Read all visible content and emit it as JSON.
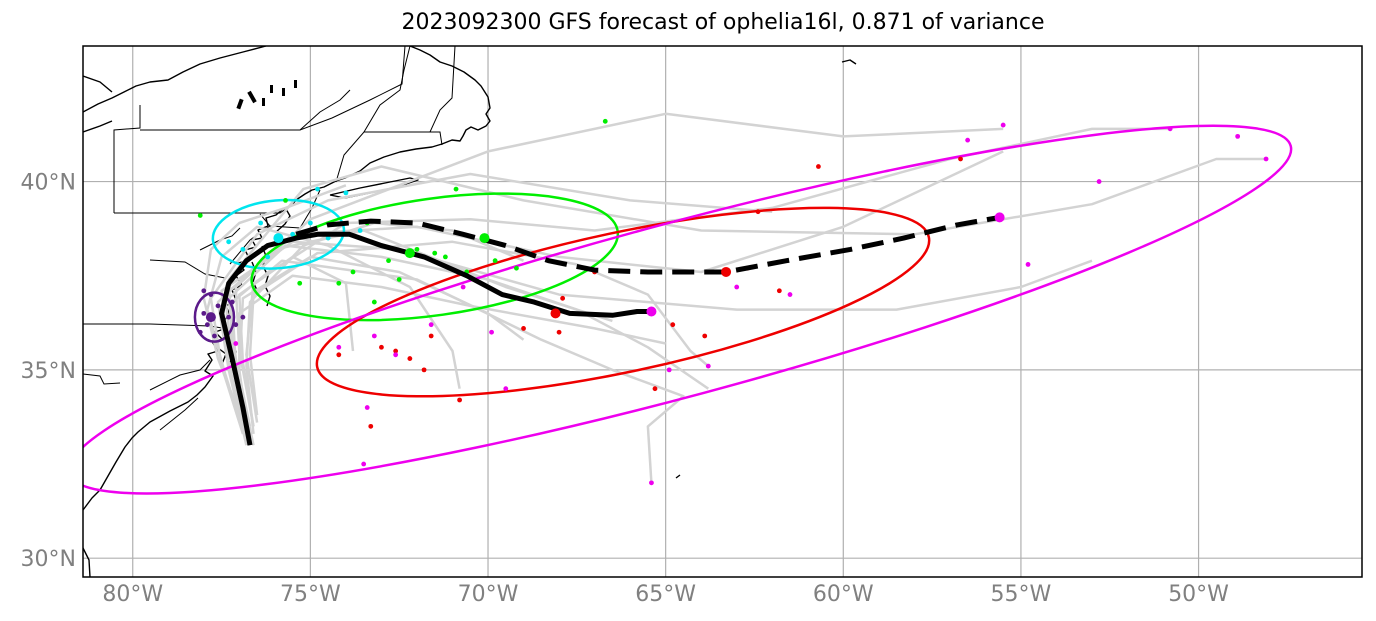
{
  "title": "2023092300 GFS forecast of ophelia16l, 0.871 of variance",
  "map": {
    "lon_range": [
      -81.4,
      -45.4
    ],
    "lat_range": [
      29.5,
      43.6
    ],
    "grid": true,
    "lon_ticks": [
      {
        "value": -80,
        "label": "80°W"
      },
      {
        "value": -75,
        "label": "75°W"
      },
      {
        "value": -70,
        "label": "70°W"
      },
      {
        "value": -65,
        "label": "65°W"
      },
      {
        "value": -60,
        "label": "60°W"
      },
      {
        "value": -55,
        "label": "55°W"
      },
      {
        "value": -50,
        "label": "50°W"
      }
    ],
    "lat_ticks": [
      {
        "value": 40,
        "label": "40°N"
      },
      {
        "value": 35,
        "label": "35°N"
      },
      {
        "value": 30,
        "label": "30°N"
      }
    ]
  },
  "colors": {
    "grid": "#b0b0b0",
    "tick_text": "#808080",
    "coast": "#000000",
    "member_track": "#d3d3d3",
    "mean_track": "#000000",
    "purple": "#5b1a8a",
    "cyan": "#00e5ee",
    "green": "#00ee00",
    "red": "#ee0000",
    "magenta": "#ee00ee"
  },
  "mean_track_solid": [
    [
      -76.7,
      33.0
    ],
    [
      -76.9,
      34.0
    ],
    [
      -77.2,
      35.3
    ],
    [
      -77.5,
      36.5
    ],
    [
      -77.3,
      37.3
    ],
    [
      -76.8,
      37.9
    ],
    [
      -76.2,
      38.3
    ],
    [
      -75.4,
      38.5
    ],
    [
      -74.8,
      38.6
    ],
    [
      -73.9,
      38.6
    ],
    [
      -73.0,
      38.3
    ],
    [
      -71.8,
      38.0
    ],
    [
      -70.6,
      37.5
    ],
    [
      -69.6,
      37.0
    ],
    [
      -68.7,
      36.8
    ],
    [
      -67.7,
      36.5
    ],
    [
      -66.5,
      36.45
    ],
    [
      -65.8,
      36.55
    ],
    [
      -65.4,
      36.55
    ]
  ],
  "mean_track_dashed": [
    [
      -75.4,
      38.6
    ],
    [
      -74.5,
      38.85
    ],
    [
      -73.3,
      38.95
    ],
    [
      -72.0,
      38.9
    ],
    [
      -70.7,
      38.6
    ],
    [
      -69.5,
      38.3
    ],
    [
      -68.3,
      37.9
    ],
    [
      -67.0,
      37.65
    ],
    [
      -65.5,
      37.6
    ],
    [
      -64.2,
      37.6
    ],
    [
      -63.3,
      37.6
    ],
    [
      -61.6,
      37.9
    ],
    [
      -59.8,
      38.2
    ],
    [
      -58.3,
      38.5
    ],
    [
      -56.8,
      38.85
    ],
    [
      -55.6,
      39.05
    ]
  ],
  "mean_points": [
    {
      "lon": -77.8,
      "lat": 36.4,
      "color": "purple"
    },
    {
      "lon": -75.9,
      "lat": 38.5,
      "color": "cyan"
    },
    {
      "lon": -72.2,
      "lat": 38.1,
      "color": "green"
    },
    {
      "lon": -70.1,
      "lat": 38.5,
      "color": "green"
    },
    {
      "lon": -68.1,
      "lat": 36.5,
      "color": "red"
    },
    {
      "lon": -63.3,
      "lat": 37.6,
      "color": "red"
    },
    {
      "lon": -65.4,
      "lat": 36.55,
      "color": "magenta"
    },
    {
      "lon": -55.6,
      "lat": 39.05,
      "color": "magenta"
    }
  ],
  "ellipses": [
    {
      "cx": -77.7,
      "cy": 36.4,
      "rx": 0.55,
      "ry": 0.65,
      "angle": 0,
      "color": "purple"
    },
    {
      "cx": -75.9,
      "cy": 38.6,
      "rx": 1.85,
      "ry": 0.9,
      "angle": -5,
      "color": "cyan"
    },
    {
      "cx": -71.5,
      "cy": 38.0,
      "rx": 5.2,
      "ry": 1.55,
      "angle": -8,
      "color": "green"
    },
    {
      "cx": -66.2,
      "cy": 36.8,
      "rx": 8.8,
      "ry": 1.85,
      "angle": -12,
      "color": "red"
    },
    {
      "cx": -64.6,
      "cy": 36.6,
      "rx": 17.8,
      "ry": 2.3,
      "angle": -15,
      "color": "magenta"
    }
  ],
  "member_tracks": [
    [
      [
        -76.8,
        33.0
      ],
      [
        -77.3,
        35.0
      ],
      [
        -77.6,
        36.8
      ],
      [
        -76.0,
        38.2
      ],
      [
        -73.5,
        38.7
      ],
      [
        -69.5,
        37.2
      ],
      [
        -66.5,
        36.3
      ]
    ],
    [
      [
        -76.7,
        33.2
      ],
      [
        -77.2,
        35.2
      ],
      [
        -77.4,
        37.0
      ],
      [
        -75.5,
        38.6
      ],
      [
        -72.0,
        38.8
      ],
      [
        -68.0,
        38.0
      ],
      [
        -64.0,
        37.6
      ],
      [
        -60.0,
        38.8
      ],
      [
        -55.5,
        40.8
      ]
    ],
    [
      [
        -76.6,
        33.5
      ],
      [
        -77.0,
        35.5
      ],
      [
        -77.1,
        37.2
      ],
      [
        -75.0,
        39.0
      ],
      [
        -70.0,
        40.8
      ],
      [
        -65.0,
        41.8
      ],
      [
        -60.0,
        41.2
      ],
      [
        -55.5,
        41.4
      ]
    ],
    [
      [
        -76.9,
        33.3
      ],
      [
        -77.5,
        35.1
      ],
      [
        -77.8,
        36.9
      ],
      [
        -76.5,
        38.6
      ],
      [
        -74.5,
        39.5
      ],
      [
        -70.5,
        40.2
      ],
      [
        -66.0,
        39.5
      ],
      [
        -62.0,
        39.2
      ]
    ],
    [
      [
        -76.5,
        33.6
      ],
      [
        -76.8,
        35.4
      ],
      [
        -76.6,
        37.3
      ],
      [
        -74.0,
        38.9
      ],
      [
        -70.5,
        39.0
      ],
      [
        -67.0,
        38.7
      ],
      [
        -62.0,
        39.3
      ],
      [
        -57.0,
        40.6
      ],
      [
        -53.0,
        41.4
      ],
      [
        -50.8,
        41.4
      ]
    ],
    [
      [
        -76.8,
        33.4
      ],
      [
        -77.2,
        35.6
      ],
      [
        -77.3,
        37.4
      ],
      [
        -75.2,
        39.8
      ],
      [
        -73.0,
        40.4
      ],
      [
        -69.0,
        39.5
      ],
      [
        -64.0,
        38.7
      ],
      [
        -58.0,
        38.6
      ],
      [
        -53.0,
        39.4
      ],
      [
        -49.5,
        40.6
      ],
      [
        -48.1,
        40.6
      ]
    ],
    [
      [
        -76.7,
        33.0
      ],
      [
        -77.0,
        35.0
      ],
      [
        -76.9,
        36.9
      ],
      [
        -75.0,
        38.0
      ],
      [
        -72.5,
        37.6
      ],
      [
        -70.0,
        36.5
      ],
      [
        -69.0,
        35.8
      ]
    ],
    [
      [
        -76.8,
        33.1
      ],
      [
        -77.4,
        34.9
      ],
      [
        -77.9,
        36.6
      ],
      [
        -77.5,
        38.0
      ],
      [
        -76.5,
        38.8
      ],
      [
        -74.5,
        38.3
      ],
      [
        -72.2,
        37.2
      ],
      [
        -71.0,
        35.5
      ],
      [
        -70.8,
        34.5
      ]
    ],
    [
      [
        -76.6,
        33.5
      ],
      [
        -76.9,
        35.2
      ],
      [
        -77.0,
        37.0
      ],
      [
        -75.5,
        38.0
      ],
      [
        -74.0,
        37.3
      ],
      [
        -73.8,
        35.5
      ]
    ],
    [
      [
        -76.7,
        33.3
      ],
      [
        -77.1,
        35.1
      ],
      [
        -77.2,
        36.8
      ],
      [
        -75.8,
        37.9
      ],
      [
        -72.0,
        37.4
      ],
      [
        -68.5,
        35.8
      ],
      [
        -66.5,
        35.0
      ],
      [
        -64.5,
        34.3
      ],
      [
        -65.5,
        33.5
      ],
      [
        -65.4,
        32.0
      ]
    ],
    [
      [
        -76.5,
        33.8
      ],
      [
        -76.7,
        35.4
      ],
      [
        -76.6,
        37.0
      ],
      [
        -74.8,
        38.1
      ],
      [
        -71.0,
        38.4
      ],
      [
        -67.5,
        37.8
      ],
      [
        -65.5,
        37.0
      ],
      [
        -64.3,
        35.5
      ],
      [
        -63.8,
        35.1
      ]
    ],
    [
      [
        -76.9,
        33.6
      ],
      [
        -77.6,
        35.3
      ],
      [
        -78.0,
        36.9
      ],
      [
        -77.8,
        38.2
      ],
      [
        -77.0,
        38.9
      ],
      [
        -75.7,
        39.3
      ],
      [
        -74.0,
        39.9
      ]
    ],
    [
      [
        -76.6,
        33.0
      ],
      [
        -77.0,
        34.8
      ],
      [
        -77.0,
        36.5
      ],
      [
        -75.5,
        37.5
      ],
      [
        -73.0,
        37.2
      ],
      [
        -70.5,
        36.7
      ],
      [
        -67.0,
        36.1
      ],
      [
        -65.0,
        35.7
      ]
    ],
    [
      [
        -76.8,
        33.2
      ],
      [
        -77.3,
        35.2
      ],
      [
        -77.5,
        37.1
      ],
      [
        -75.5,
        38.4
      ],
      [
        -72.5,
        38.2
      ],
      [
        -68.0,
        37.0
      ],
      [
        -63.0,
        36.6
      ],
      [
        -58.5,
        36.6
      ],
      [
        -55.0,
        37.2
      ],
      [
        -53.0,
        37.9
      ]
    ],
    [
      [
        -76.7,
        33.5
      ],
      [
        -77.1,
        35.3
      ],
      [
        -77.3,
        36.9
      ],
      [
        -75.7,
        38.3
      ],
      [
        -73.0,
        38.0
      ],
      [
        -70.0,
        37.4
      ],
      [
        -67.5,
        36.6
      ],
      [
        -65.5,
        35.6
      ],
      [
        -63.8,
        34.5
      ]
    ],
    [
      [
        -76.6,
        33.3
      ],
      [
        -76.8,
        35.1
      ],
      [
        -76.7,
        36.8
      ],
      [
        -75.2,
        38.3
      ],
      [
        -73.2,
        38.9
      ],
      [
        -71.0,
        38.7
      ],
      [
        -69.0,
        37.9
      ]
    ]
  ],
  "member_points": {
    "purple": [
      [
        -77.6,
        36.7
      ],
      [
        -77.9,
        36.2
      ],
      [
        -77.4,
        36.1
      ],
      [
        -78.0,
        36.5
      ],
      [
        -77.2,
        36.8
      ],
      [
        -77.7,
        35.9
      ],
      [
        -78.1,
        36.0
      ],
      [
        -77.3,
        36.4
      ],
      [
        -77.8,
        37.0
      ],
      [
        -77.1,
        36.2
      ],
      [
        -78.0,
        37.1
      ],
      [
        -77.5,
        36.5
      ],
      [
        -76.9,
        36.4
      ]
    ],
    "cyan": [
      [
        -76.9,
        38.2
      ],
      [
        -76.4,
        38.9
      ],
      [
        -75.5,
        38.6
      ],
      [
        -74.8,
        39.8
      ],
      [
        -74.5,
        38.5
      ],
      [
        -74.0,
        39.7
      ],
      [
        -76.2,
        38.0
      ],
      [
        -75.0,
        38.9
      ],
      [
        -73.6,
        38.7
      ],
      [
        -75.9,
        38.5
      ],
      [
        -77.3,
        38.4
      ]
    ],
    "green": [
      [
        -70.9,
        39.8
      ],
      [
        -72.0,
        38.2
      ],
      [
        -73.4,
        38.9
      ],
      [
        -72.8,
        37.9
      ],
      [
        -73.8,
        37.6
      ],
      [
        -71.5,
        38.1
      ],
      [
        -70.6,
        37.6
      ],
      [
        -69.8,
        37.9
      ],
      [
        -71.2,
        38.0
      ],
      [
        -72.5,
        37.4
      ],
      [
        -73.2,
        36.8
      ],
      [
        -75.3,
        37.3
      ],
      [
        -74.2,
        37.3
      ],
      [
        -69.2,
        37.7
      ],
      [
        -66.7,
        41.6
      ],
      [
        -78.1,
        39.1
      ],
      [
        -75.7,
        39.5
      ]
    ],
    "red": [
      [
        -67.0,
        37.6
      ],
      [
        -67.9,
        36.9
      ],
      [
        -68.0,
        36.0
      ],
      [
        -69.0,
        36.1
      ],
      [
        -71.6,
        35.9
      ],
      [
        -73.0,
        35.6
      ],
      [
        -72.2,
        35.3
      ],
      [
        -74.2,
        35.4
      ],
      [
        -72.6,
        35.5
      ],
      [
        -64.8,
        36.2
      ],
      [
        -62.7,
        37.7
      ],
      [
        -61.8,
        37.1
      ],
      [
        -60.7,
        40.4
      ],
      [
        -56.7,
        40.6
      ],
      [
        -62.4,
        39.2
      ],
      [
        -71.8,
        35.0
      ],
      [
        -73.3,
        33.5
      ],
      [
        -70.8,
        34.2
      ],
      [
        -65.3,
        34.5
      ],
      [
        -63.9,
        35.9
      ]
    ],
    "magenta": [
      [
        -65.4,
        32.0
      ],
      [
        -73.5,
        32.5
      ],
      [
        -73.2,
        35.9
      ],
      [
        -74.2,
        35.6
      ],
      [
        -72.6,
        35.4
      ],
      [
        -69.5,
        34.5
      ],
      [
        -69.9,
        36.0
      ],
      [
        -70.7,
        37.2
      ],
      [
        -64.9,
        35.0
      ],
      [
        -63.0,
        37.2
      ],
      [
        -63.8,
        35.1
      ],
      [
        -61.5,
        37.0
      ],
      [
        -55.5,
        41.5
      ],
      [
        -56.5,
        41.1
      ],
      [
        -50.8,
        41.4
      ],
      [
        -48.9,
        41.2
      ],
      [
        -48.1,
        40.6
      ],
      [
        -52.8,
        40.0
      ],
      [
        -54.8,
        37.8
      ],
      [
        -73.4,
        34.0
      ],
      [
        -71.6,
        36.2
      ],
      [
        -77.1,
        35.7
      ]
    ]
  }
}
